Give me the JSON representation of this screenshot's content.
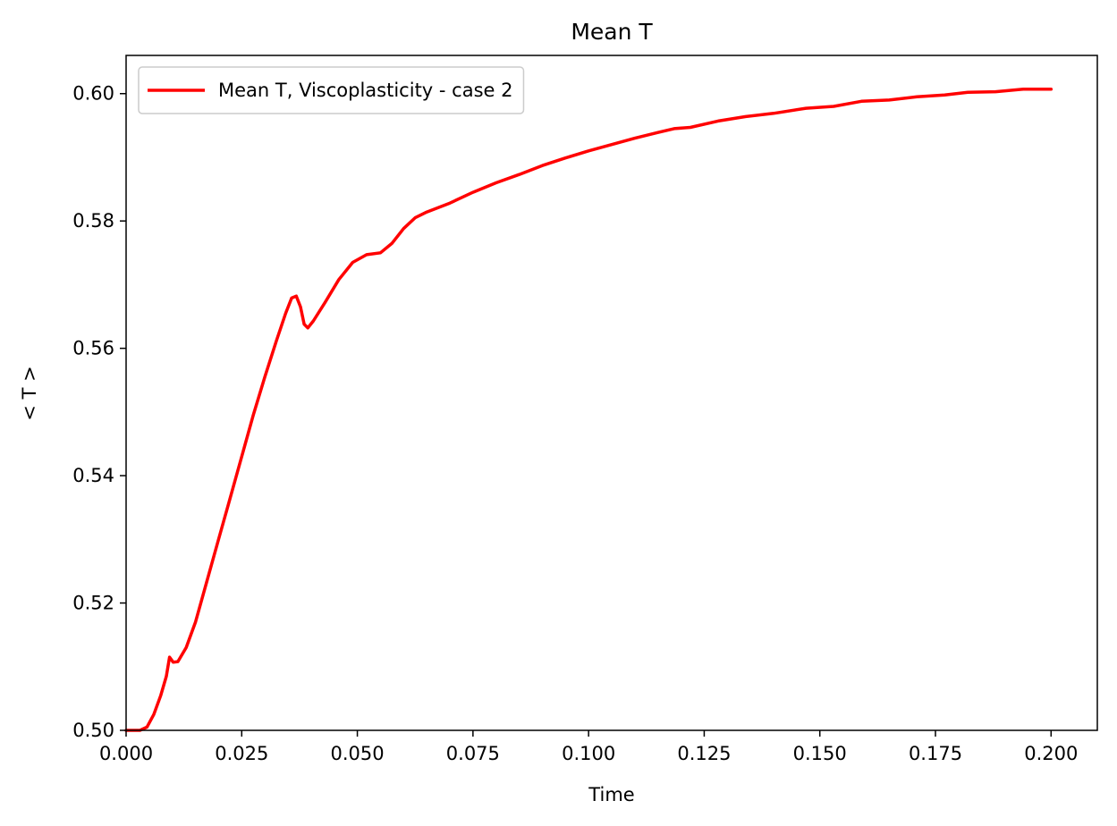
{
  "chart_data": {
    "type": "line",
    "title": "Mean T",
    "xlabel": "Time",
    "ylabel": "< T >",
    "xlim": [
      0.0,
      0.21
    ],
    "ylim": [
      0.5,
      0.606
    ],
    "x_ticks": [
      "0.000",
      "0.025",
      "0.050",
      "0.075",
      "0.100",
      "0.125",
      "0.150",
      "0.175",
      "0.200"
    ],
    "y_ticks": [
      "0.50",
      "0.52",
      "0.54",
      "0.56",
      "0.58",
      "0.60"
    ],
    "grid": false,
    "legend_position": "top-left",
    "series": [
      {
        "name": "Mean T, Viscoplasticity - case 2",
        "color": "#ff0000",
        "points": [
          [
            0.0,
            0.5
          ],
          [
            0.003,
            0.5
          ],
          [
            0.0045,
            0.5005
          ],
          [
            0.006,
            0.5025
          ],
          [
            0.0075,
            0.5055
          ],
          [
            0.0087,
            0.5085
          ],
          [
            0.0094,
            0.5115
          ],
          [
            0.0102,
            0.5107
          ],
          [
            0.0112,
            0.5108
          ],
          [
            0.013,
            0.513
          ],
          [
            0.015,
            0.517
          ],
          [
            0.0175,
            0.5235
          ],
          [
            0.02,
            0.53
          ],
          [
            0.0225,
            0.5365
          ],
          [
            0.025,
            0.543
          ],
          [
            0.0275,
            0.5495
          ],
          [
            0.03,
            0.5555
          ],
          [
            0.0325,
            0.5612
          ],
          [
            0.0345,
            0.5655
          ],
          [
            0.0358,
            0.5679
          ],
          [
            0.0368,
            0.5682
          ],
          [
            0.0377,
            0.5665
          ],
          [
            0.0385,
            0.5638
          ],
          [
            0.0393,
            0.5632
          ],
          [
            0.0405,
            0.5643
          ],
          [
            0.043,
            0.5672
          ],
          [
            0.046,
            0.5708
          ],
          [
            0.049,
            0.5735
          ],
          [
            0.052,
            0.5747
          ],
          [
            0.055,
            0.575
          ],
          [
            0.0575,
            0.5765
          ],
          [
            0.06,
            0.5788
          ],
          [
            0.0625,
            0.5805
          ],
          [
            0.065,
            0.5814
          ],
          [
            0.07,
            0.5828
          ],
          [
            0.075,
            0.5845
          ],
          [
            0.08,
            0.586
          ],
          [
            0.085,
            0.5873
          ],
          [
            0.09,
            0.5887
          ],
          [
            0.095,
            0.5899
          ],
          [
            0.1,
            0.591
          ],
          [
            0.105,
            0.592
          ],
          [
            0.11,
            0.593
          ],
          [
            0.115,
            0.5939
          ],
          [
            0.1185,
            0.5945
          ],
          [
            0.122,
            0.5947
          ],
          [
            0.128,
            0.5957
          ],
          [
            0.134,
            0.5964
          ],
          [
            0.14,
            0.5969
          ],
          [
            0.147,
            0.5977
          ],
          [
            0.153,
            0.598
          ],
          [
            0.159,
            0.5988
          ],
          [
            0.165,
            0.599
          ],
          [
            0.171,
            0.5995
          ],
          [
            0.177,
            0.5998
          ],
          [
            0.182,
            0.6002
          ],
          [
            0.188,
            0.6003
          ],
          [
            0.194,
            0.6007
          ],
          [
            0.2,
            0.6007
          ]
        ]
      }
    ]
  }
}
